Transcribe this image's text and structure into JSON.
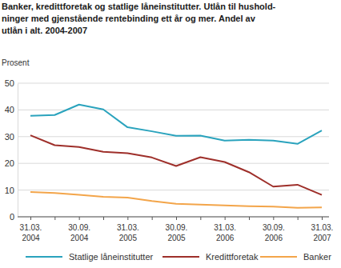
{
  "chart_data": {
    "type": "line",
    "title": "Banker, kredittforetak og statlige låneinstitutter. Utlån til hushold-\nninger med gjenstående rentebinding ett år og mer. Andel av\nutlån i alt. 2004-2007",
    "y_label": "Prosent",
    "categories": [
      "31.03.\n2004",
      null,
      "30.09.\n2004",
      null,
      "31.03.\n2005",
      null,
      "30.09.\n2005",
      null,
      "31.03.\n2006",
      null,
      "30.09.\n2006",
      null,
      "31.03.\n2007"
    ],
    "series": [
      {
        "name": "Statlige låneinstitutter",
        "color": "#2aa3bd",
        "values": [
          37.8,
          38.1,
          42.0,
          40.2,
          33.5,
          32.0,
          30.3,
          30.4,
          28.5,
          28.8,
          28.5,
          27.3,
          32.3
        ]
      },
      {
        "name": "Kredittforetak",
        "color": "#9e2f2a",
        "values": [
          30.5,
          26.8,
          26.1,
          24.3,
          23.8,
          22.2,
          19.0,
          22.3,
          20.5,
          16.7,
          11.3,
          12.0,
          8.2
        ]
      },
      {
        "name": "Banker",
        "color": "#f3a54a",
        "values": [
          9.3,
          8.9,
          8.2,
          7.5,
          7.2,
          5.9,
          4.9,
          4.6,
          4.3,
          4.0,
          3.8,
          3.4,
          3.5
        ]
      }
    ],
    "ylim": [
      0,
      50
    ],
    "yticks": [
      0,
      10,
      20,
      30,
      40,
      50
    ],
    "grid": true,
    "legend": "bottom"
  }
}
